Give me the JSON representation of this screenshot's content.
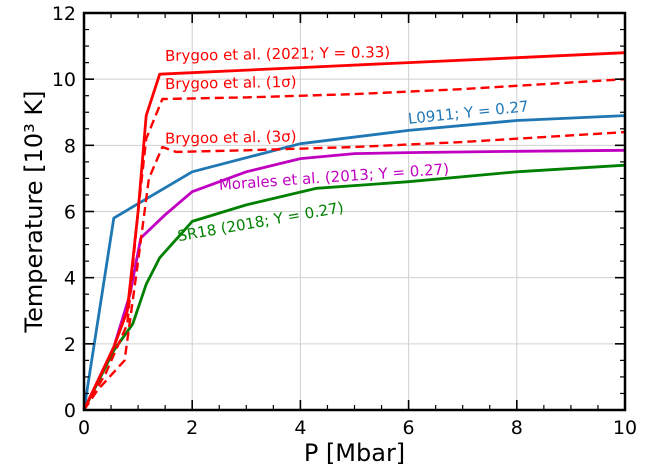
{
  "chart_data": {
    "type": "line",
    "xlabel": "P [Mbar]",
    "ylabel": "Temperature [10³ K]",
    "xlim": [
      0,
      10
    ],
    "ylim": [
      0,
      12
    ],
    "x_ticks": [
      "0",
      "2",
      "4",
      "6",
      "8",
      "10"
    ],
    "y_ticks": [
      "0",
      "2",
      "4",
      "6",
      "8",
      "10",
      "12"
    ],
    "grid": true,
    "series": [
      {
        "name": "L0911; Y = 0.27",
        "color": "#1f77b4",
        "style": "solid",
        "points": [
          [
            0,
            0
          ],
          [
            0.55,
            5.8
          ],
          [
            2.0,
            7.2
          ],
          [
            4.0,
            8.05
          ],
          [
            6.0,
            8.45
          ],
          [
            8.0,
            8.75
          ],
          [
            10.0,
            8.9
          ]
        ]
      },
      {
        "name": "Morales et al. (2013; Y = 0.27)",
        "color": "#c000c0",
        "style": "solid",
        "points": [
          [
            0,
            0
          ],
          [
            0.55,
            1.9
          ],
          [
            0.85,
            3.5
          ],
          [
            1.05,
            5.2
          ],
          [
            1.5,
            5.9
          ],
          [
            2.0,
            6.6
          ],
          [
            3.0,
            7.2
          ],
          [
            4.0,
            7.6
          ],
          [
            5.0,
            7.75
          ],
          [
            6.0,
            7.78
          ],
          [
            8.0,
            7.82
          ],
          [
            10.0,
            7.85
          ]
        ]
      },
      {
        "name": "SR18 (2018; Y = 0.27)",
        "color": "#008000",
        "style": "solid",
        "points": [
          [
            0,
            0
          ],
          [
            0.55,
            1.8
          ],
          [
            0.9,
            2.6
          ],
          [
            1.15,
            3.8
          ],
          [
            1.4,
            4.6
          ],
          [
            2.0,
            5.7
          ],
          [
            3.0,
            6.2
          ],
          [
            4.3,
            6.7
          ],
          [
            6.0,
            6.9
          ],
          [
            8.0,
            7.2
          ],
          [
            10.0,
            7.4
          ]
        ]
      },
      {
        "name": "Brygoo et al. (2021; Y = 0.33)",
        "color": "#ff0000",
        "style": "solid",
        "points": [
          [
            0,
            0
          ],
          [
            0.55,
            1.9
          ],
          [
            0.8,
            3.0
          ],
          [
            1.0,
            6.0
          ],
          [
            1.15,
            8.9
          ],
          [
            1.4,
            10.15
          ],
          [
            4.0,
            10.35
          ],
          [
            6.0,
            10.5
          ],
          [
            8.0,
            10.65
          ],
          [
            10.0,
            10.8
          ]
        ]
      },
      {
        "name": "Brygoo et al. (1σ)",
        "color": "#ff0000",
        "style": "dashed",
        "points": [
          [
            0,
            0
          ],
          [
            0.4,
            1.1
          ],
          [
            0.8,
            2.6
          ],
          [
            1.0,
            6.0
          ],
          [
            1.15,
            8.2
          ],
          [
            1.45,
            9.4
          ],
          [
            3.0,
            9.45
          ],
          [
            5.0,
            9.55
          ],
          [
            7.0,
            9.7
          ],
          [
            10.0,
            10.0
          ]
        ]
      },
      {
        "name": "Brygoo et al. (3σ)",
        "color": "#ff0000",
        "style": "dashed",
        "points": [
          [
            0,
            0
          ],
          [
            0.25,
            0.6
          ],
          [
            0.75,
            1.5
          ],
          [
            1.0,
            4.5
          ],
          [
            1.2,
            7.0
          ],
          [
            1.45,
            7.95
          ],
          [
            1.7,
            7.8
          ],
          [
            3.0,
            7.85
          ],
          [
            5.0,
            7.95
          ],
          [
            7.0,
            8.1
          ],
          [
            10.0,
            8.4
          ]
        ]
      }
    ],
    "annotations": [
      {
        "text": "Brygoo et al. (2021; Y = 0.33)",
        "color": "#ff0000",
        "x": 1.5,
        "y": 10.55,
        "rotation": -1
      },
      {
        "text": "Brygoo et al. (1σ)",
        "color": "#ff0000",
        "x": 1.5,
        "y": 9.7,
        "rotation": -1
      },
      {
        "text": "Brygoo et al. (3σ)",
        "color": "#ff0000",
        "x": 1.5,
        "y": 8.05,
        "rotation": -1
      },
      {
        "text": "L0911; Y = 0.27",
        "color": "#1f77b4",
        "x": 6.0,
        "y": 8.65,
        "rotation": -6
      },
      {
        "text": "Morales et al. (2013; Y = 0.27)",
        "color": "#c000c0",
        "x": 2.5,
        "y": 6.65,
        "rotation": -4
      },
      {
        "text": "SR18 (2018; Y = 0.27)",
        "color": "#008000",
        "x": 1.75,
        "y": 5.1,
        "rotation": -10
      }
    ]
  }
}
